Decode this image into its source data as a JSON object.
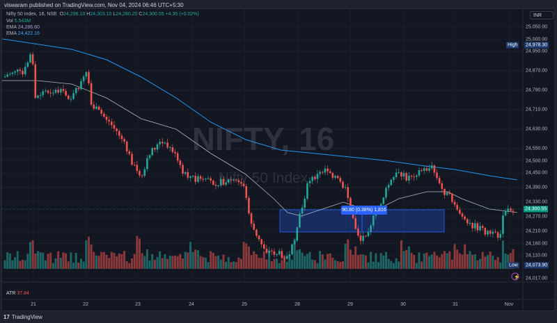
{
  "publisher_line": "viswaram published on TradingView.com, Nov 04, 2024 06:46 UTC+5:30",
  "legend": {
    "symbol": "Nifty 50 Index, 16, NSE",
    "o_label": "O",
    "o": "24,296.10",
    "h_label": "H",
    "h": "24,303.10",
    "l_label": "L",
    "l": "24,280.20",
    "c_label": "C",
    "c": "24,300.55",
    "change": "+4.35 (+0.02%)",
    "vol_label": "Vol",
    "vol": "5.543M",
    "ema1_label": "EMA",
    "ema1": "24,286.60",
    "ema2_label": "EMA",
    "ema2": "24,422.16"
  },
  "watermark": {
    "ticker": "NIFTY, 16",
    "name": "Nifty 50 Index"
  },
  "currency": "INR",
  "price_labels": [
    "25,050.00",
    "25,000.00",
    "24,950.00",
    "24,870.00",
    "24,790.00",
    "24,710.00",
    "24,630.00",
    "24,550.00",
    "24,500.00",
    "24,450.00",
    "24,390.00",
    "24,330.00",
    "24,270.00",
    "24,210.00",
    "24,160.00",
    "24,110.00",
    "24,017.00"
  ],
  "high_tag": {
    "label": "High",
    "value": "24,978.30"
  },
  "low_tag": {
    "label": "Low",
    "value": "24,073.90"
  },
  "last_price": "24,300.55",
  "measure_label": "90.80 (0.38%) 1,816",
  "atr": {
    "label": "ATR",
    "value": "37.84"
  },
  "time_labels": [
    "21",
    "22",
    "23",
    "24",
    "25",
    "28",
    "29",
    "30",
    "31",
    "Nov"
  ],
  "brand": "TradingView",
  "colors": {
    "up": "#26a69a",
    "down": "#ef5350",
    "ema_fast": "#b2b5be",
    "ema_slow": "#2196f3",
    "measure": "#2962ff"
  },
  "chart_data": {
    "type": "candlestick",
    "title": "Nifty 50 Index, 16, NSE",
    "ylim": [
      24000,
      25070
    ],
    "x_ticks": [
      "21",
      "22",
      "23",
      "24",
      "25",
      "28",
      "29",
      "30",
      "31",
      "Nov"
    ],
    "approx_close_path": [
      [
        "21",
        24840
      ],
      [
        "21",
        24978
      ],
      [
        "22",
        24760
      ],
      [
        "22",
        24790
      ],
      [
        "23",
        24600
      ],
      [
        "23",
        24490
      ],
      [
        "23",
        24570
      ],
      [
        "24",
        24445
      ],
      [
        "24",
        24440
      ],
      [
        "25",
        24430
      ],
      [
        "25",
        24130
      ],
      [
        "25",
        24116
      ],
      [
        "28",
        24430
      ],
      [
        "28",
        24470
      ],
      [
        "29",
        24260
      ],
      [
        "29",
        24220
      ],
      [
        "29",
        24440
      ],
      [
        "30",
        24475
      ],
      [
        "30",
        24490
      ],
      [
        "31",
        24290
      ],
      [
        "31",
        24180
      ],
      [
        "31",
        24155
      ],
      [
        "Nov",
        24300
      ]
    ],
    "ema_fast_last": 24286.6,
    "ema_slow_last": 24422.16,
    "high": 24978.3,
    "low": 24073.9,
    "last": 24300.55,
    "measure": {
      "range_points": 90.8,
      "range_percent": 0.38,
      "bars": 1816,
      "from": 24210,
      "to": 24300
    }
  }
}
